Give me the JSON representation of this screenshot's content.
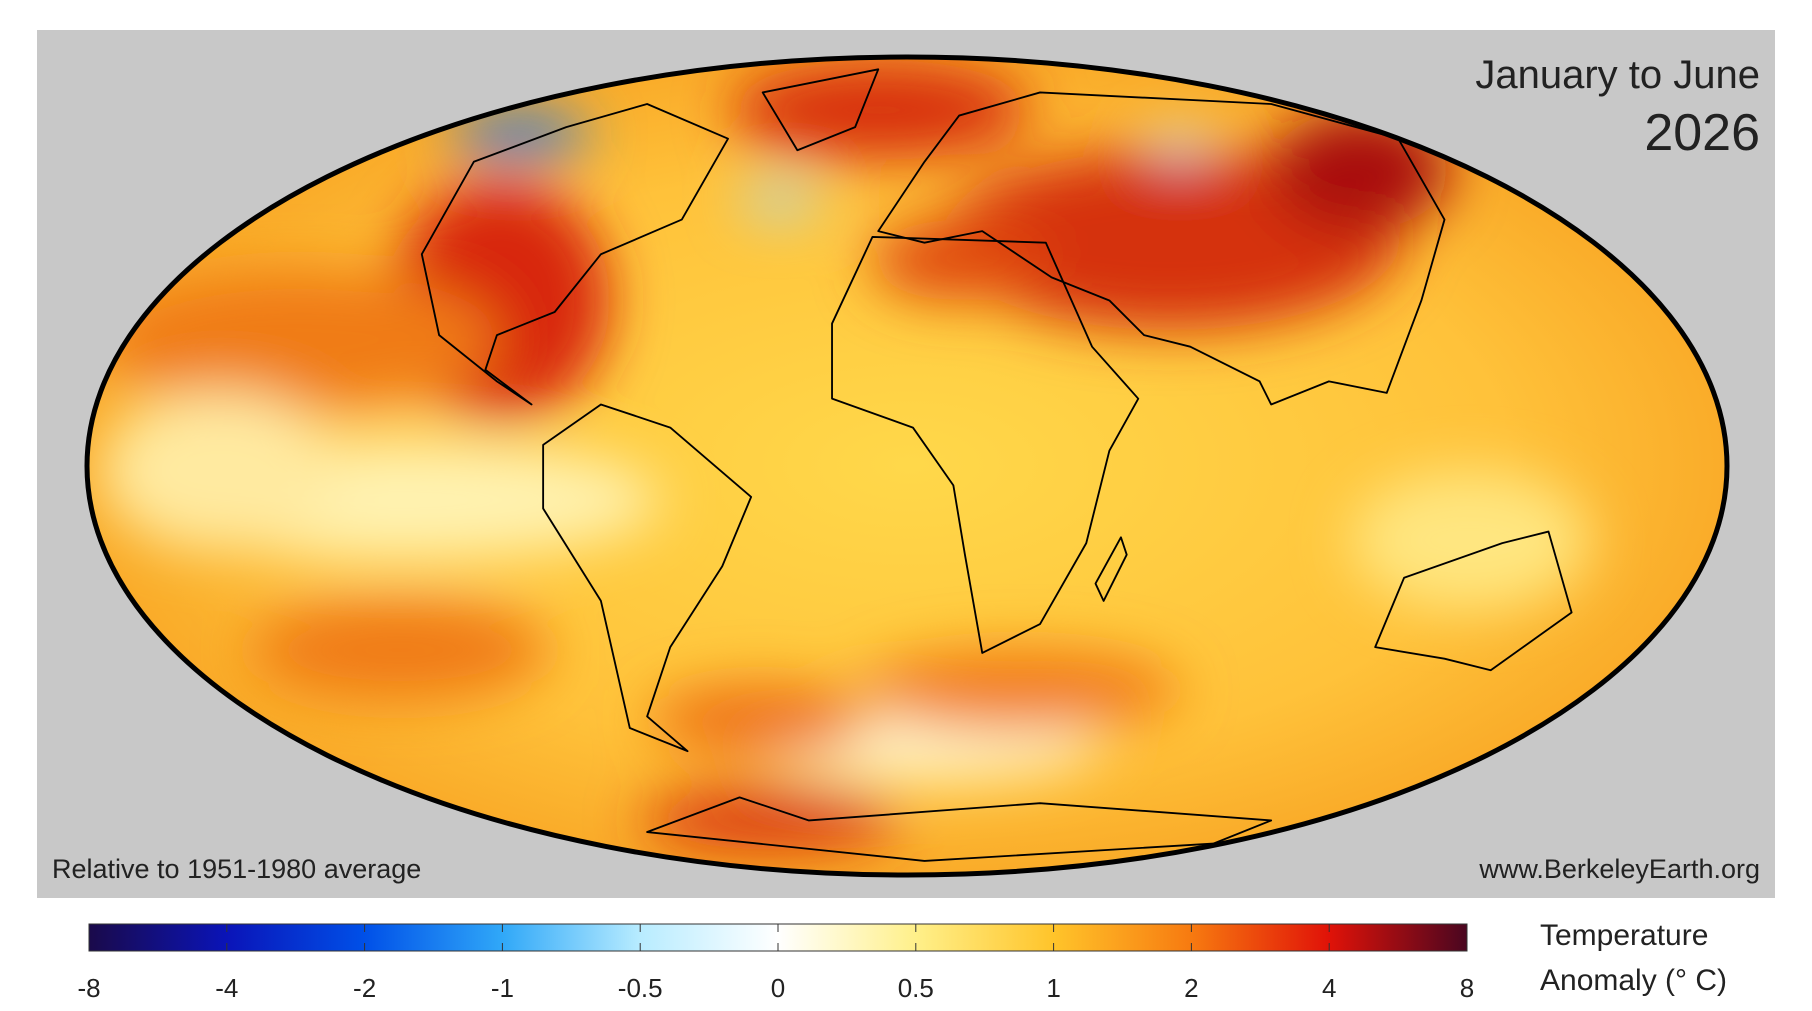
{
  "header": {
    "title": "January to June",
    "year": "2026"
  },
  "footer": {
    "baseline": "Relative to 1951-1980 average",
    "source": "www.BerkeleyEarth.org"
  },
  "colorbar": {
    "label_line1": "Temperature",
    "label_line2": "Anomaly (° C)",
    "ticks": [
      -8,
      -4,
      -2,
      -1,
      -0.5,
      0,
      0.5,
      1,
      2,
      4,
      8
    ]
  }
}
